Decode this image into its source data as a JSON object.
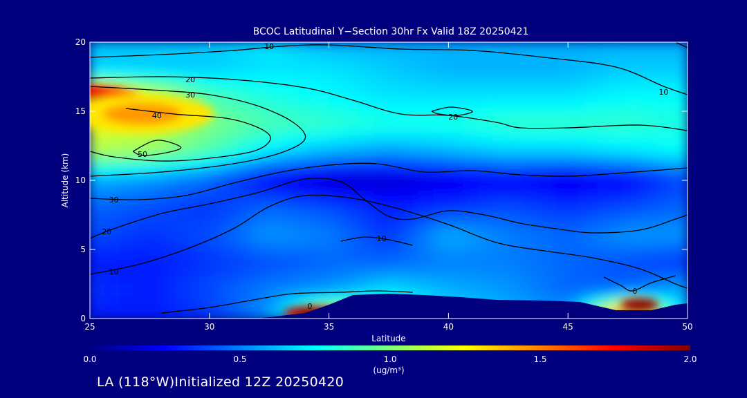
{
  "chart_data": {
    "type": "heatmap",
    "title": "BCOC Latitudinal Y−Section 30hr  Fx Valid 18Z 20250421",
    "xlabel": "Latitude",
    "ylabel": "Altitude (km)",
    "xlim": [
      25,
      50
    ],
    "ylim": [
      0,
      20
    ],
    "x_ticks": [
      "25",
      "30",
      "35",
      "40",
      "45",
      "50"
    ],
    "y_ticks": [
      "0",
      "5",
      "10",
      "15",
      "20"
    ],
    "colorbar": {
      "min": 0.0,
      "max": 2.0,
      "ticks": [
        "0.0",
        "0.5",
        "1.0",
        "1.5",
        "2.0"
      ],
      "unit": "(ug/m³)",
      "colors": [
        "#00007f",
        "#0000ff",
        "#007fff",
        "#00ffff",
        "#7fff7f",
        "#ffff00",
        "#ff7f00",
        "#ff0000",
        "#7f0000"
      ]
    },
    "field_lat": [
      25,
      27.5,
      30,
      32.5,
      35,
      37.5,
      40,
      42.5,
      45,
      47.5,
      50
    ],
    "field_alt": [
      20,
      18,
      16,
      14,
      12,
      10,
      8,
      6,
      4,
      2,
      0
    ],
    "field_values": [
      [
        0.65,
        0.65,
        0.65,
        0.7,
        0.6,
        0.6,
        0.6,
        0.6,
        0.6,
        0.6,
        0.6
      ],
      [
        0.65,
        0.65,
        0.65,
        0.7,
        0.7,
        0.65,
        0.6,
        0.6,
        0.6,
        0.65,
        0.65
      ],
      [
        1.45,
        1.2,
        0.9,
        0.8,
        0.75,
        0.7,
        0.7,
        0.7,
        0.7,
        0.75,
        0.75
      ],
      [
        1.2,
        1.15,
        1.0,
        0.9,
        0.85,
        0.8,
        0.8,
        0.85,
        0.85,
        0.85,
        0.8
      ],
      [
        1.1,
        1.05,
        0.9,
        0.7,
        0.6,
        0.55,
        0.6,
        0.65,
        0.65,
        0.7,
        0.75
      ],
      [
        0.6,
        0.55,
        0.45,
        0.25,
        0.15,
        0.15,
        0.2,
        0.25,
        0.2,
        0.25,
        0.4
      ],
      [
        0.45,
        0.4,
        0.35,
        0.45,
        0.4,
        0.3,
        0.35,
        0.4,
        0.35,
        0.4,
        0.45
      ],
      [
        0.4,
        0.35,
        0.4,
        0.55,
        0.5,
        0.35,
        0.6,
        0.5,
        0.45,
        0.55,
        0.55
      ],
      [
        0.3,
        0.3,
        0.35,
        0.4,
        0.45,
        0.45,
        0.5,
        0.5,
        0.45,
        0.4,
        0.35
      ],
      [
        0.35,
        0.3,
        0.4,
        0.5,
        0.55,
        0.7,
        0.6,
        0.55,
        0.45,
        0.45,
        0.6
      ],
      [
        0.3,
        0.3,
        0.35,
        0.55,
        1.3,
        0.9,
        0.7,
        0.6,
        0.55,
        1.9,
        0.6
      ]
    ],
    "hotspots": [
      {
        "lat": 25.0,
        "alt": 15.5,
        "value": 1.75,
        "rlat": 2.6,
        "ralt": 1.3
      },
      {
        "lat": 27.2,
        "alt": 14.8,
        "value": 1.3,
        "rlat": 3.0,
        "ralt": 1.4
      },
      {
        "lat": 34.3,
        "alt": 0.4,
        "value": 1.85,
        "rlat": 1.2,
        "ralt": 0.5
      },
      {
        "lat": 48.0,
        "alt": 1.0,
        "value": 1.95,
        "rlat": 0.8,
        "ralt": 0.45
      }
    ],
    "terrain": [
      [
        25,
        0
      ],
      [
        30,
        0
      ],
      [
        32,
        0
      ],
      [
        34,
        0.4
      ],
      [
        35,
        1.0
      ],
      [
        36,
        1.7
      ],
      [
        37.5,
        1.8
      ],
      [
        39,
        1.7
      ],
      [
        40.5,
        1.55
      ],
      [
        42,
        1.35
      ],
      [
        44,
        1.3
      ],
      [
        45.5,
        1.2
      ],
      [
        47,
        0.6
      ],
      [
        48.5,
        0.6
      ],
      [
        49.5,
        1.0
      ],
      [
        50,
        1.1
      ]
    ],
    "contours": [
      {
        "level": "10",
        "label_at": [
          32.5,
          19.7
        ],
        "points": [
          [
            25,
            18.9
          ],
          [
            28,
            19.1
          ],
          [
            31,
            19.4
          ],
          [
            33,
            19.7
          ],
          [
            35,
            19.8
          ],
          [
            38,
            19.5
          ],
          [
            41,
            19.4
          ],
          [
            44,
            18.9
          ],
          [
            47,
            18.2
          ],
          [
            49,
            16.8
          ],
          [
            50,
            16.2
          ]
        ]
      },
      {
        "level": "10",
        "label_at": [
          49.0,
          16.4
        ],
        "points": [
          [
            50,
            19.6
          ],
          [
            49.5,
            20
          ]
        ]
      },
      {
        "level": "20",
        "label_at": [
          29.2,
          17.3
        ],
        "points": [
          [
            25,
            17.4
          ],
          [
            28,
            17.5
          ],
          [
            31,
            17.3
          ],
          [
            34,
            16.7
          ],
          [
            36,
            15.8
          ],
          [
            38,
            14.8
          ],
          [
            40,
            14.7
          ],
          [
            42,
            14.2
          ],
          [
            43,
            13.8
          ],
          [
            45,
            13.8
          ],
          [
            48,
            14.0
          ],
          [
            50,
            13.6
          ]
        ]
      },
      {
        "level": "20",
        "label_at": [
          40.2,
          14.6
        ],
        "points": [
          [
            39.3,
            15.0
          ],
          [
            40.1,
            15.3
          ],
          [
            41.0,
            15.0
          ],
          [
            40.4,
            14.7
          ],
          [
            39.6,
            14.8
          ],
          [
            39.3,
            15.0
          ]
        ]
      },
      {
        "level": "30",
        "label_at": [
          29.2,
          16.2
        ],
        "points": [
          [
            25,
            16.8
          ],
          [
            28,
            16.5
          ],
          [
            30,
            16.2
          ],
          [
            32,
            15.4
          ],
          [
            33.5,
            14.2
          ],
          [
            34,
            13.0
          ],
          [
            33,
            12.0
          ],
          [
            31,
            11.2
          ],
          [
            28,
            10.6
          ],
          [
            25,
            10.3
          ]
        ]
      },
      {
        "level": "40",
        "label_at": [
          27.8,
          14.7
        ],
        "points": [
          [
            26.5,
            15.2
          ],
          [
            28.5,
            14.8
          ],
          [
            31,
            14.4
          ],
          [
            32.5,
            13.3
          ],
          [
            32.0,
            12.2
          ],
          [
            30,
            11.6
          ],
          [
            28,
            11.4
          ],
          [
            26,
            11.7
          ],
          [
            25,
            12.1
          ]
        ]
      },
      {
        "level": "50",
        "label_at": [
          27.2,
          11.9
        ],
        "points": [
          [
            26.8,
            12.1
          ],
          [
            27.8,
            12.9
          ],
          [
            28.8,
            12.4
          ],
          [
            28.2,
            12.0
          ],
          [
            27.2,
            11.8
          ],
          [
            26.8,
            12.1
          ]
        ]
      },
      {
        "level": "30",
        "label_at": [
          26.0,
          8.6
        ],
        "points": [
          [
            25,
            8.7
          ],
          [
            27,
            8.6
          ],
          [
            29,
            8.9
          ],
          [
            31,
            9.8
          ],
          [
            33,
            10.6
          ],
          [
            35,
            11.1
          ],
          [
            37,
            11.2
          ],
          [
            39,
            10.6
          ],
          [
            41,
            10.7
          ],
          [
            43,
            10.4
          ],
          [
            45,
            10.3
          ],
          [
            47,
            10.5
          ],
          [
            50,
            10.9
          ]
        ]
      },
      {
        "level": "20",
        "label_at": [
          25.7,
          6.3
        ],
        "points": [
          [
            25,
            5.8
          ],
          [
            26,
            6.5
          ],
          [
            28,
            7.6
          ],
          [
            30,
            8.3
          ],
          [
            32,
            9.1
          ],
          [
            34,
            10.1
          ],
          [
            35.5,
            9.9
          ],
          [
            36.5,
            8.6
          ],
          [
            37.5,
            7.4
          ],
          [
            38.5,
            7.2
          ],
          [
            40,
            7.8
          ],
          [
            41.5,
            7.5
          ],
          [
            43,
            6.9
          ],
          [
            44.5,
            6.5
          ],
          [
            46,
            6.2
          ],
          [
            48,
            6.4
          ],
          [
            49.5,
            7.2
          ],
          [
            50,
            7.5
          ]
        ]
      },
      {
        "level": "10",
        "label_at": [
          26.0,
          3.4
        ],
        "points": [
          [
            25,
            3.2
          ],
          [
            27,
            3.9
          ],
          [
            29,
            5.0
          ],
          [
            31,
            6.5
          ],
          [
            32.5,
            8.1
          ],
          [
            34,
            8.9
          ],
          [
            36,
            8.7
          ],
          [
            38,
            7.9
          ],
          [
            40,
            6.8
          ],
          [
            42,
            5.5
          ],
          [
            44,
            4.9
          ],
          [
            46,
            4.4
          ],
          [
            48,
            3.6
          ],
          [
            49.5,
            2.5
          ],
          [
            50,
            2.2
          ]
        ]
      },
      {
        "level": "10",
        "label_at": [
          37.2,
          5.8
        ],
        "points": [
          [
            35.5,
            5.6
          ],
          [
            36.5,
            5.9
          ],
          [
            37.5,
            5.7
          ],
          [
            38.5,
            5.3
          ]
        ]
      },
      {
        "level": "0",
        "label_at": [
          34.2,
          0.9
        ],
        "points": [
          [
            28,
            0.4
          ],
          [
            30,
            0.8
          ],
          [
            32,
            1.4
          ],
          [
            33.5,
            1.8
          ],
          [
            35.5,
            1.9
          ],
          [
            37,
            2.0
          ],
          [
            38.5,
            1.9
          ]
        ]
      },
      {
        "level": "0",
        "label_at": [
          47.8,
          2.0
        ],
        "points": [
          [
            46.5,
            3.0
          ],
          [
            47.2,
            2.4
          ],
          [
            47.7,
            2.0
          ],
          [
            48.5,
            2.6
          ],
          [
            49.5,
            3.1
          ]
        ]
      }
    ]
  },
  "footer": {
    "text": "LA (118°W)Initialized 12Z 20250420"
  }
}
